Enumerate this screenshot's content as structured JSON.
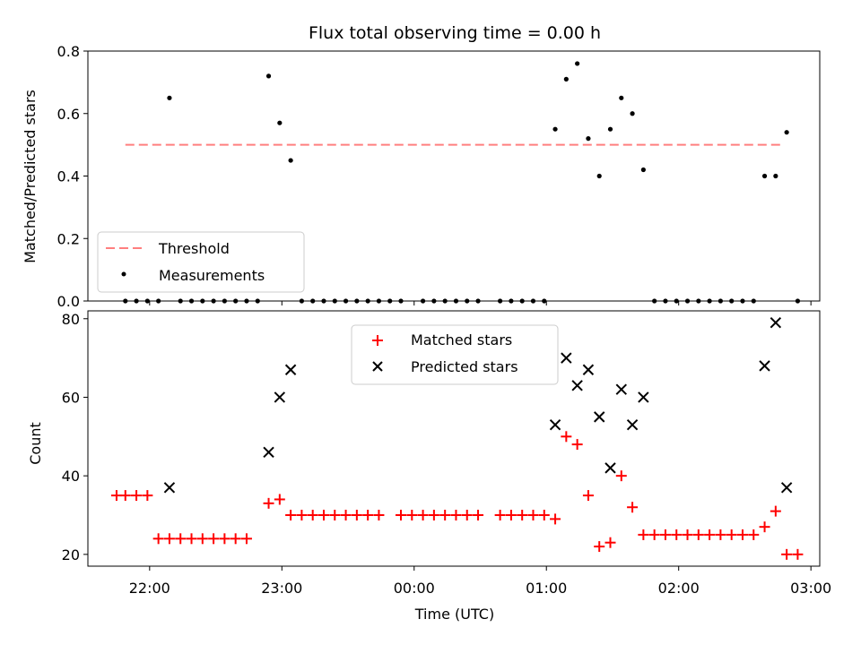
{
  "chart_data": [
    {
      "type": "scatter",
      "title": "Flux total observing time = 0.00 h",
      "xlabel": "",
      "ylabel": "Matched/Predicted stars",
      "ylim": [
        0,
        0.8
      ],
      "yticks": [
        "0.0",
        "0.2",
        "0.4",
        "0.6",
        "0.8"
      ],
      "xlim": [
        "21:32",
        "03:04"
      ],
      "x_tick_values": [
        "22:00",
        "23:00",
        "00:00",
        "01:00",
        "02:00",
        "03:00"
      ],
      "legend": {
        "placement": "lower-left",
        "entries": [
          {
            "label": "Threshold",
            "style": "dashed-line",
            "color": "#ff7f7f"
          },
          {
            "label": "Measurements",
            "style": "dot",
            "color": "#000000"
          }
        ]
      },
      "threshold": {
        "value": 0.5,
        "x_start": "21:49",
        "x_end": "02:47",
        "color": "#ff7f7f"
      },
      "series": [
        {
          "name": "Measurements",
          "color": "#000000",
          "points": [
            [
              "21:49",
              0.0
            ],
            [
              "21:54",
              0.0
            ],
            [
              "21:59",
              0.0
            ],
            [
              "22:04",
              0.0
            ],
            [
              "22:09",
              0.65
            ],
            [
              "22:14",
              0.0
            ],
            [
              "22:19",
              0.0
            ],
            [
              "22:24",
              0.0
            ],
            [
              "22:29",
              0.0
            ],
            [
              "22:34",
              0.0
            ],
            [
              "22:39",
              0.0
            ],
            [
              "22:44",
              0.0
            ],
            [
              "22:49",
              0.0
            ],
            [
              "22:54",
              0.72
            ],
            [
              "22:59",
              0.57
            ],
            [
              "23:04",
              0.45
            ],
            [
              "23:09",
              0.0
            ],
            [
              "23:14",
              0.0
            ],
            [
              "23:19",
              0.0
            ],
            [
              "23:24",
              0.0
            ],
            [
              "23:29",
              0.0
            ],
            [
              "23:34",
              0.0
            ],
            [
              "23:39",
              0.0
            ],
            [
              "23:44",
              0.0
            ],
            [
              "23:49",
              0.0
            ],
            [
              "23:54",
              0.0
            ],
            [
              "00:04",
              0.0
            ],
            [
              "00:09",
              0.0
            ],
            [
              "00:14",
              0.0
            ],
            [
              "00:19",
              0.0
            ],
            [
              "00:24",
              0.0
            ],
            [
              "00:29",
              0.0
            ],
            [
              "00:39",
              0.0
            ],
            [
              "00:44",
              0.0
            ],
            [
              "00:49",
              0.0
            ],
            [
              "00:54",
              0.0
            ],
            [
              "00:59",
              0.0
            ],
            [
              "01:04",
              0.55
            ],
            [
              "01:09",
              0.71
            ],
            [
              "01:14",
              0.76
            ],
            [
              "01:19",
              0.52
            ],
            [
              "01:24",
              0.4
            ],
            [
              "01:29",
              0.55
            ],
            [
              "01:34",
              0.65
            ],
            [
              "01:39",
              0.6
            ],
            [
              "01:44",
              0.42
            ],
            [
              "01:49",
              0.0
            ],
            [
              "01:54",
              0.0
            ],
            [
              "01:59",
              0.0
            ],
            [
              "02:04",
              0.0
            ],
            [
              "02:09",
              0.0
            ],
            [
              "02:14",
              0.0
            ],
            [
              "02:19",
              0.0
            ],
            [
              "02:24",
              0.0
            ],
            [
              "02:29",
              0.0
            ],
            [
              "02:34",
              0.0
            ],
            [
              "02:39",
              0.4
            ],
            [
              "02:44",
              0.4
            ],
            [
              "02:49",
              0.54
            ],
            [
              "02:54",
              0.0
            ]
          ]
        }
      ]
    },
    {
      "type": "scatter",
      "title": "",
      "xlabel": "Time (UTC)",
      "ylabel": "Count",
      "ylim": [
        17,
        82
      ],
      "yticks": [
        "20",
        "40",
        "60",
        "80"
      ],
      "xlim": [
        "21:32",
        "03:04"
      ],
      "xticks": [
        "22:00",
        "23:00",
        "00:00",
        "01:00",
        "02:00",
        "03:00"
      ],
      "legend": {
        "placement": "upper-center",
        "entries": [
          {
            "label": "Matched stars",
            "style": "plus",
            "color": "#ff0000"
          },
          {
            "label": "Predicted stars",
            "style": "x",
            "color": "#000000"
          }
        ]
      },
      "series": [
        {
          "name": "Matched stars",
          "marker": "plus",
          "color": "#ff0000",
          "points": [
            [
              "21:45",
              35
            ],
            [
              "21:49",
              35
            ],
            [
              "21:54",
              35
            ],
            [
              "21:59",
              35
            ],
            [
              "22:04",
              24
            ],
            [
              "22:09",
              24
            ],
            [
              "22:14",
              24
            ],
            [
              "22:19",
              24
            ],
            [
              "22:24",
              24
            ],
            [
              "22:29",
              24
            ],
            [
              "22:34",
              24
            ],
            [
              "22:39",
              24
            ],
            [
              "22:44",
              24
            ],
            [
              "22:54",
              33
            ],
            [
              "22:59",
              34
            ],
            [
              "23:04",
              30
            ],
            [
              "23:09",
              30
            ],
            [
              "23:14",
              30
            ],
            [
              "23:19",
              30
            ],
            [
              "23:24",
              30
            ],
            [
              "23:29",
              30
            ],
            [
              "23:34",
              30
            ],
            [
              "23:39",
              30
            ],
            [
              "23:44",
              30
            ],
            [
              "23:54",
              30
            ],
            [
              "23:59",
              30
            ],
            [
              "00:04",
              30
            ],
            [
              "00:09",
              30
            ],
            [
              "00:14",
              30
            ],
            [
              "00:19",
              30
            ],
            [
              "00:24",
              30
            ],
            [
              "00:29",
              30
            ],
            [
              "00:39",
              30
            ],
            [
              "00:44",
              30
            ],
            [
              "00:49",
              30
            ],
            [
              "00:54",
              30
            ],
            [
              "00:59",
              30
            ],
            [
              "01:04",
              29
            ],
            [
              "01:09",
              50
            ],
            [
              "01:14",
              48
            ],
            [
              "01:19",
              35
            ],
            [
              "01:24",
              22
            ],
            [
              "01:29",
              23
            ],
            [
              "01:34",
              40
            ],
            [
              "01:39",
              32
            ],
            [
              "01:44",
              25
            ],
            [
              "01:49",
              25
            ],
            [
              "01:54",
              25
            ],
            [
              "01:59",
              25
            ],
            [
              "02:04",
              25
            ],
            [
              "02:09",
              25
            ],
            [
              "02:14",
              25
            ],
            [
              "02:19",
              25
            ],
            [
              "02:24",
              25
            ],
            [
              "02:29",
              25
            ],
            [
              "02:34",
              25
            ],
            [
              "02:39",
              27
            ],
            [
              "02:44",
              31
            ],
            [
              "02:49",
              20
            ],
            [
              "02:54",
              20
            ]
          ]
        },
        {
          "name": "Predicted stars",
          "marker": "x",
          "color": "#000000",
          "points": [
            [
              "22:09",
              37
            ],
            [
              "22:54",
              46
            ],
            [
              "22:59",
              60
            ],
            [
              "23:04",
              67
            ],
            [
              "01:04",
              53
            ],
            [
              "01:09",
              70
            ],
            [
              "01:14",
              63
            ],
            [
              "01:19",
              67
            ],
            [
              "01:24",
              55
            ],
            [
              "01:29",
              42
            ],
            [
              "01:34",
              62
            ],
            [
              "01:39",
              53
            ],
            [
              "01:44",
              60
            ],
            [
              "02:39",
              68
            ],
            [
              "02:44",
              79
            ],
            [
              "02:49",
              37
            ]
          ]
        }
      ]
    }
  ]
}
